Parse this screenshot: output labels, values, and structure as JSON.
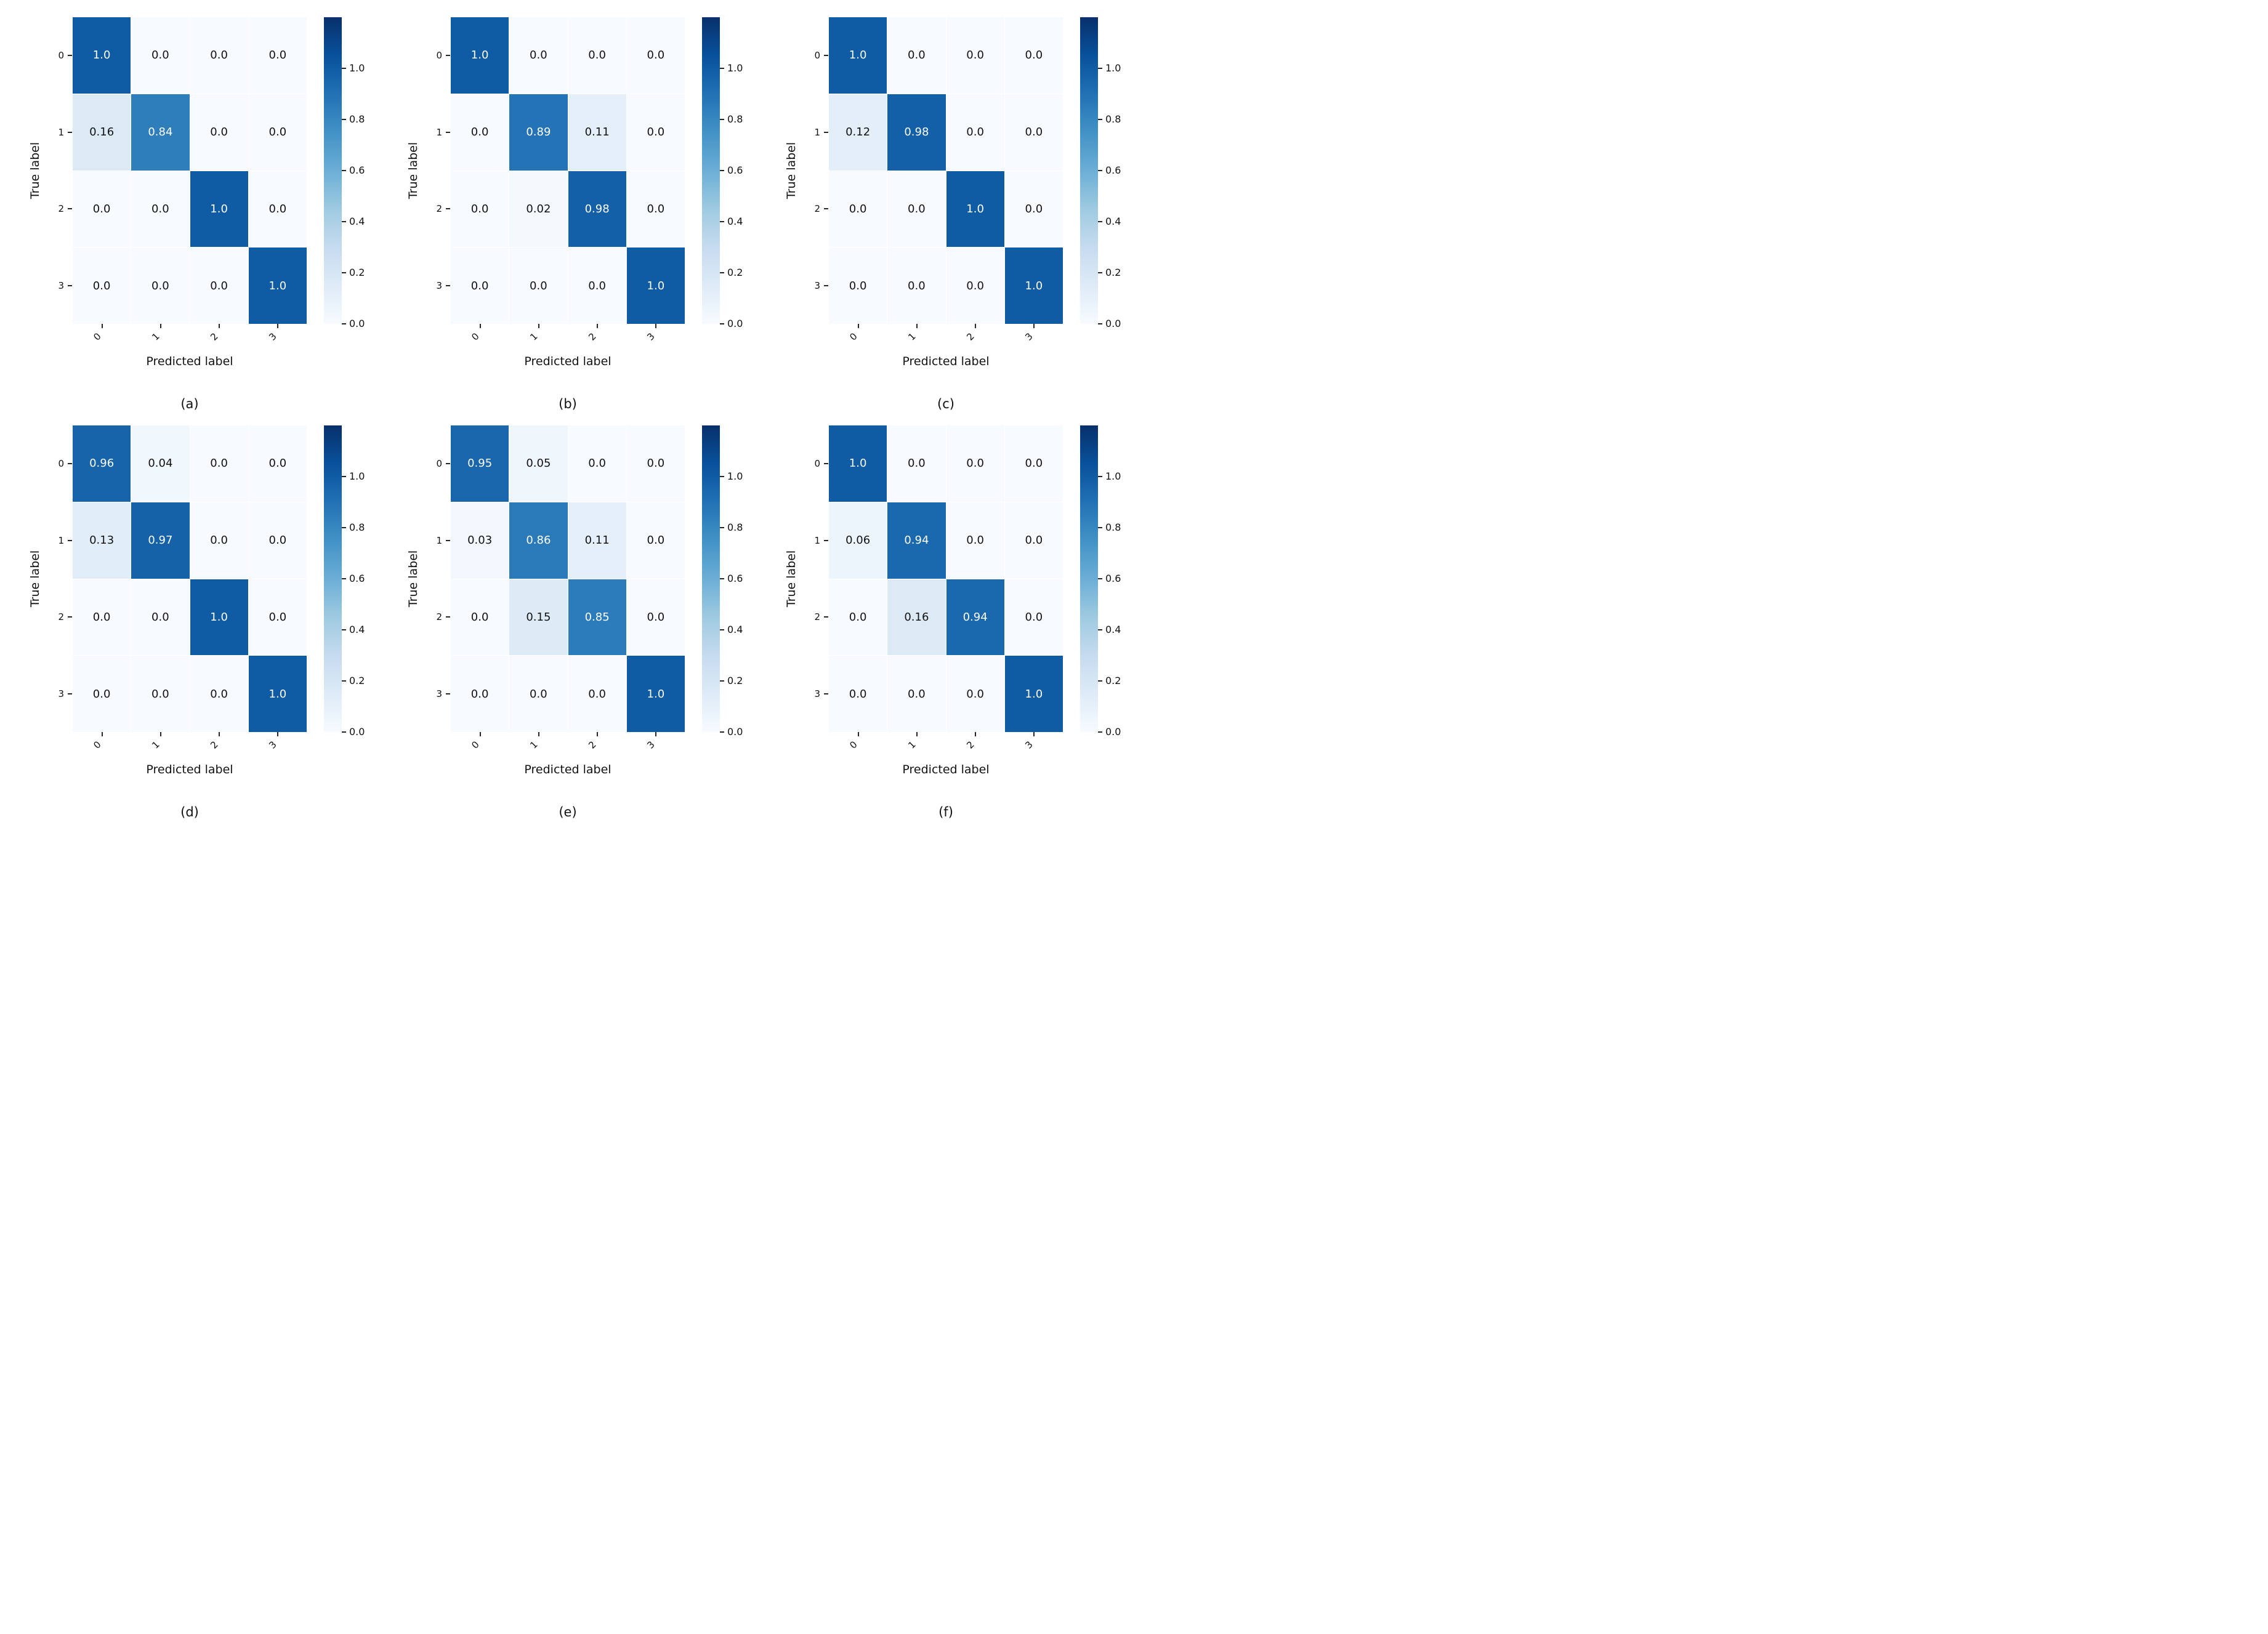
{
  "figure": {
    "background": "#ffffff",
    "xlabel": "Predicted label",
    "ylabel": "True label",
    "x_tick_labels": [
      "0",
      "1",
      "2",
      "3"
    ],
    "y_tick_labels": [
      "0",
      "1",
      "2",
      "3"
    ],
    "colorbar": {
      "vmin": 0,
      "vmax": 1.2,
      "tick_labels": [
        "1.0",
        "0.8",
        "0.6",
        "0.4",
        "0.2",
        "0.0"
      ]
    },
    "color_scale": {
      "name": "Blues",
      "stops": [
        "#f7fbff",
        "#deebf7",
        "#c6dbef",
        "#9ecae1",
        "#6baed6",
        "#4292c6",
        "#2171b5",
        "#08519c",
        "#08306b"
      ]
    },
    "annotation_text_dark": "#111111",
    "annotation_text_light": "#ffffff"
  },
  "chart_data": [
    {
      "type": "heatmap",
      "label": "(a)",
      "xlabel": "Predicted label",
      "ylabel": "True label",
      "x": [
        "0",
        "1",
        "2",
        "3"
      ],
      "y": [
        "0",
        "1",
        "2",
        "3"
      ],
      "matrix": [
        [
          1.0,
          0.0,
          0.0,
          0.0
        ],
        [
          0.16,
          0.84,
          0.0,
          0.0
        ],
        [
          0.0,
          0.0,
          1.0,
          0.0
        ],
        [
          0.0,
          0.0,
          0.0,
          1.0
        ]
      ]
    },
    {
      "type": "heatmap",
      "label": "(b)",
      "xlabel": "Predicted label",
      "ylabel": "True label",
      "x": [
        "0",
        "1",
        "2",
        "3"
      ],
      "y": [
        "0",
        "1",
        "2",
        "3"
      ],
      "matrix": [
        [
          1.0,
          0.0,
          0.0,
          0.0
        ],
        [
          0.0,
          0.89,
          0.11,
          0.0
        ],
        [
          0.0,
          0.02,
          0.98,
          0.0
        ],
        [
          0.0,
          0.0,
          0.0,
          1.0
        ]
      ]
    },
    {
      "type": "heatmap",
      "label": "(c)",
      "xlabel": "Predicted label",
      "ylabel": "True label",
      "x": [
        "0",
        "1",
        "2",
        "3"
      ],
      "y": [
        "0",
        "1",
        "2",
        "3"
      ],
      "matrix": [
        [
          1.0,
          0.0,
          0.0,
          0.0
        ],
        [
          0.12,
          0.98,
          0.0,
          0.0
        ],
        [
          0.0,
          0.0,
          1.0,
          0.0
        ],
        [
          0.0,
          0.0,
          0.0,
          1.0
        ]
      ]
    },
    {
      "type": "heatmap",
      "label": "(d)",
      "xlabel": "Predicted label",
      "ylabel": "True label",
      "x": [
        "0",
        "1",
        "2",
        "3"
      ],
      "y": [
        "0",
        "1",
        "2",
        "3"
      ],
      "matrix": [
        [
          0.96,
          0.04,
          0.0,
          0.0
        ],
        [
          0.13,
          0.97,
          0.0,
          0.0
        ],
        [
          0.0,
          0.0,
          1.0,
          0.0
        ],
        [
          0.0,
          0.0,
          0.0,
          1.0
        ]
      ]
    },
    {
      "type": "heatmap",
      "label": "(e)",
      "xlabel": "Predicted label",
      "ylabel": "True label",
      "x": [
        "0",
        "1",
        "2",
        "3"
      ],
      "y": [
        "0",
        "1",
        "2",
        "3"
      ],
      "matrix": [
        [
          0.95,
          0.05,
          0.0,
          0.0
        ],
        [
          0.03,
          0.86,
          0.11,
          0.0
        ],
        [
          0.0,
          0.15,
          0.85,
          0.0
        ],
        [
          0.0,
          0.0,
          0.0,
          1.0
        ]
      ]
    },
    {
      "type": "heatmap",
      "label": "(f)",
      "xlabel": "Predicted label",
      "ylabel": "True label",
      "x": [
        "0",
        "1",
        "2",
        "3"
      ],
      "y": [
        "0",
        "1",
        "2",
        "3"
      ],
      "matrix": [
        [
          1.0,
          0.0,
          0.0,
          0.0
        ],
        [
          0.06,
          0.94,
          0.0,
          0.0
        ],
        [
          0.0,
          0.16,
          0.94,
          0.0
        ],
        [
          0.0,
          0.0,
          0.0,
          1.0
        ]
      ]
    }
  ]
}
